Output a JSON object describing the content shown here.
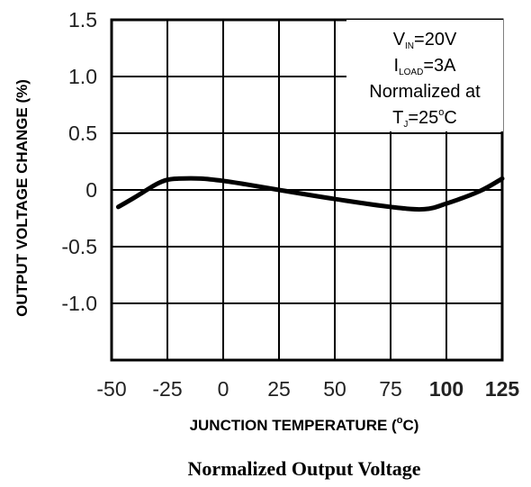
{
  "chart_data": {
    "type": "line",
    "xlabel": "JUNCTION TEMPERATURE (",
    "xlabel_unit_sup": "o",
    "xlabel_unit": "C)",
    "ylabel": "OUTPUT VOLTAGE CHANGE (%)",
    "caption": "Normalized Output Voltage",
    "xlim": [
      -50,
      125
    ],
    "ylim": [
      -1.5,
      1.5
    ],
    "x_ticks": [
      -50,
      -25,
      0,
      25,
      50,
      75,
      100,
      125
    ],
    "x_tick_labels": [
      "-50",
      "-25",
      "0",
      "25",
      "50",
      "75",
      "100",
      "125"
    ],
    "y_ticks": [
      1.5,
      1.0,
      0.5,
      0,
      -0.5,
      -1.0
    ],
    "y_tick_labels": [
      "1.5",
      "1.0",
      "0.5",
      "0",
      "-0.5",
      "-1.0"
    ],
    "grid": true,
    "series": [
      {
        "x": [
          -47,
          -40,
          -30,
          -25,
          -20,
          -10,
          0,
          10,
          25,
          50,
          75,
          90,
          100,
          115,
          125
        ],
        "y": [
          -0.15,
          -0.07,
          0.05,
          0.09,
          0.1,
          0.1,
          0.08,
          0.05,
          0.0,
          -0.08,
          -0.15,
          -0.17,
          -0.12,
          -0.01,
          0.1
        ]
      }
    ],
    "annotations": {
      "line1": {
        "main": "V",
        "sub": "IN",
        "rest": "=20V"
      },
      "line2": {
        "main": "I",
        "sub": "LOAD",
        "rest": "=3A"
      },
      "line3": {
        "text": "Normalized at"
      },
      "line4": {
        "main": "T",
        "sub": "J",
        "rest": "=25",
        "sup": "o",
        "tail": "C"
      }
    },
    "colors": {
      "line": "#000000",
      "grid": "#000000",
      "background": "#ffffff"
    }
  }
}
